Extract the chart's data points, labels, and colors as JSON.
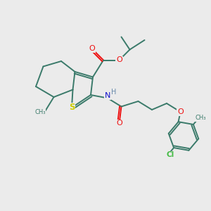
{
  "bg_color": "#ebebeb",
  "atom_colors": {
    "C": "#3a7a6a",
    "O": "#ee1111",
    "N": "#1111cc",
    "S": "#cccc00",
    "Cl": "#44bb44",
    "H": "#6688aa"
  },
  "bond_color": "#3a7a6a",
  "figsize": [
    3.0,
    3.0
  ],
  "dpi": 100
}
